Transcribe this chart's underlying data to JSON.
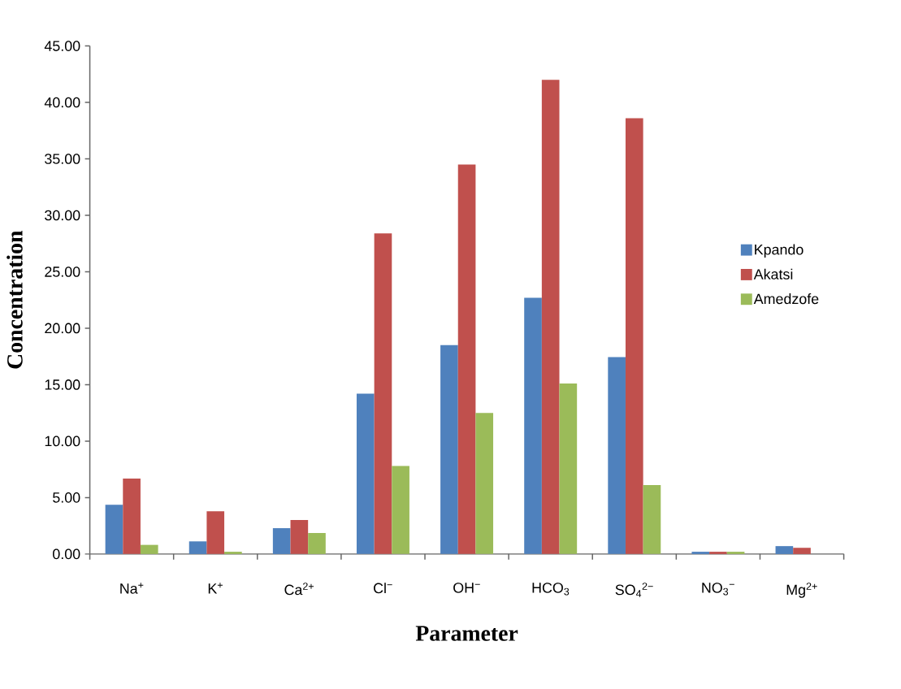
{
  "chart_data": {
    "type": "bar",
    "xlabel": "Parameter",
    "ylabel": "Concentration",
    "categories": [
      "Na$^{+}$",
      "K$^{+}$",
      "Ca$^{2+}$",
      "Cl$^{−}$",
      "OH$^{−}$",
      "HCO$_{3}$",
      "SO$_{4}$$^{2−}$",
      "NO$_{3}$$^{−}$",
      "Mg$^{2+}$"
    ],
    "series": [
      {
        "name": "Kpando",
        "color": "#4f81bd",
        "values": [
          4.36,
          1.12,
          2.29,
          14.2,
          18.5,
          22.7,
          17.45,
          0.2,
          0.7
        ]
      },
      {
        "name": "Akatsi",
        "color": "#c0504d",
        "values": [
          6.69,
          3.79,
          3.02,
          28.4,
          34.5,
          42.0,
          38.6,
          0.2,
          0.55
        ]
      },
      {
        "name": "Amedzofe",
        "color": "#9bbb59",
        "values": [
          0.81,
          0.2,
          1.86,
          7.8,
          12.5,
          15.1,
          6.1,
          0.2,
          0
        ]
      }
    ],
    "ylim": [
      0,
      45
    ],
    "yticks": [
      {
        "value": 0,
        "label": "0.00"
      },
      {
        "value": 5,
        "label": "5.00"
      },
      {
        "value": 10,
        "label": "10.00"
      },
      {
        "value": 15,
        "label": "15.00"
      },
      {
        "value": 20,
        "label": "20.00"
      },
      {
        "value": 25,
        "label": "25.00"
      },
      {
        "value": 30,
        "label": "30.00"
      },
      {
        "value": 35,
        "label": "35.00"
      },
      {
        "value": 40,
        "label": "40.00"
      },
      {
        "value": 45,
        "label": "45.00"
      }
    ],
    "legend": "right"
  }
}
